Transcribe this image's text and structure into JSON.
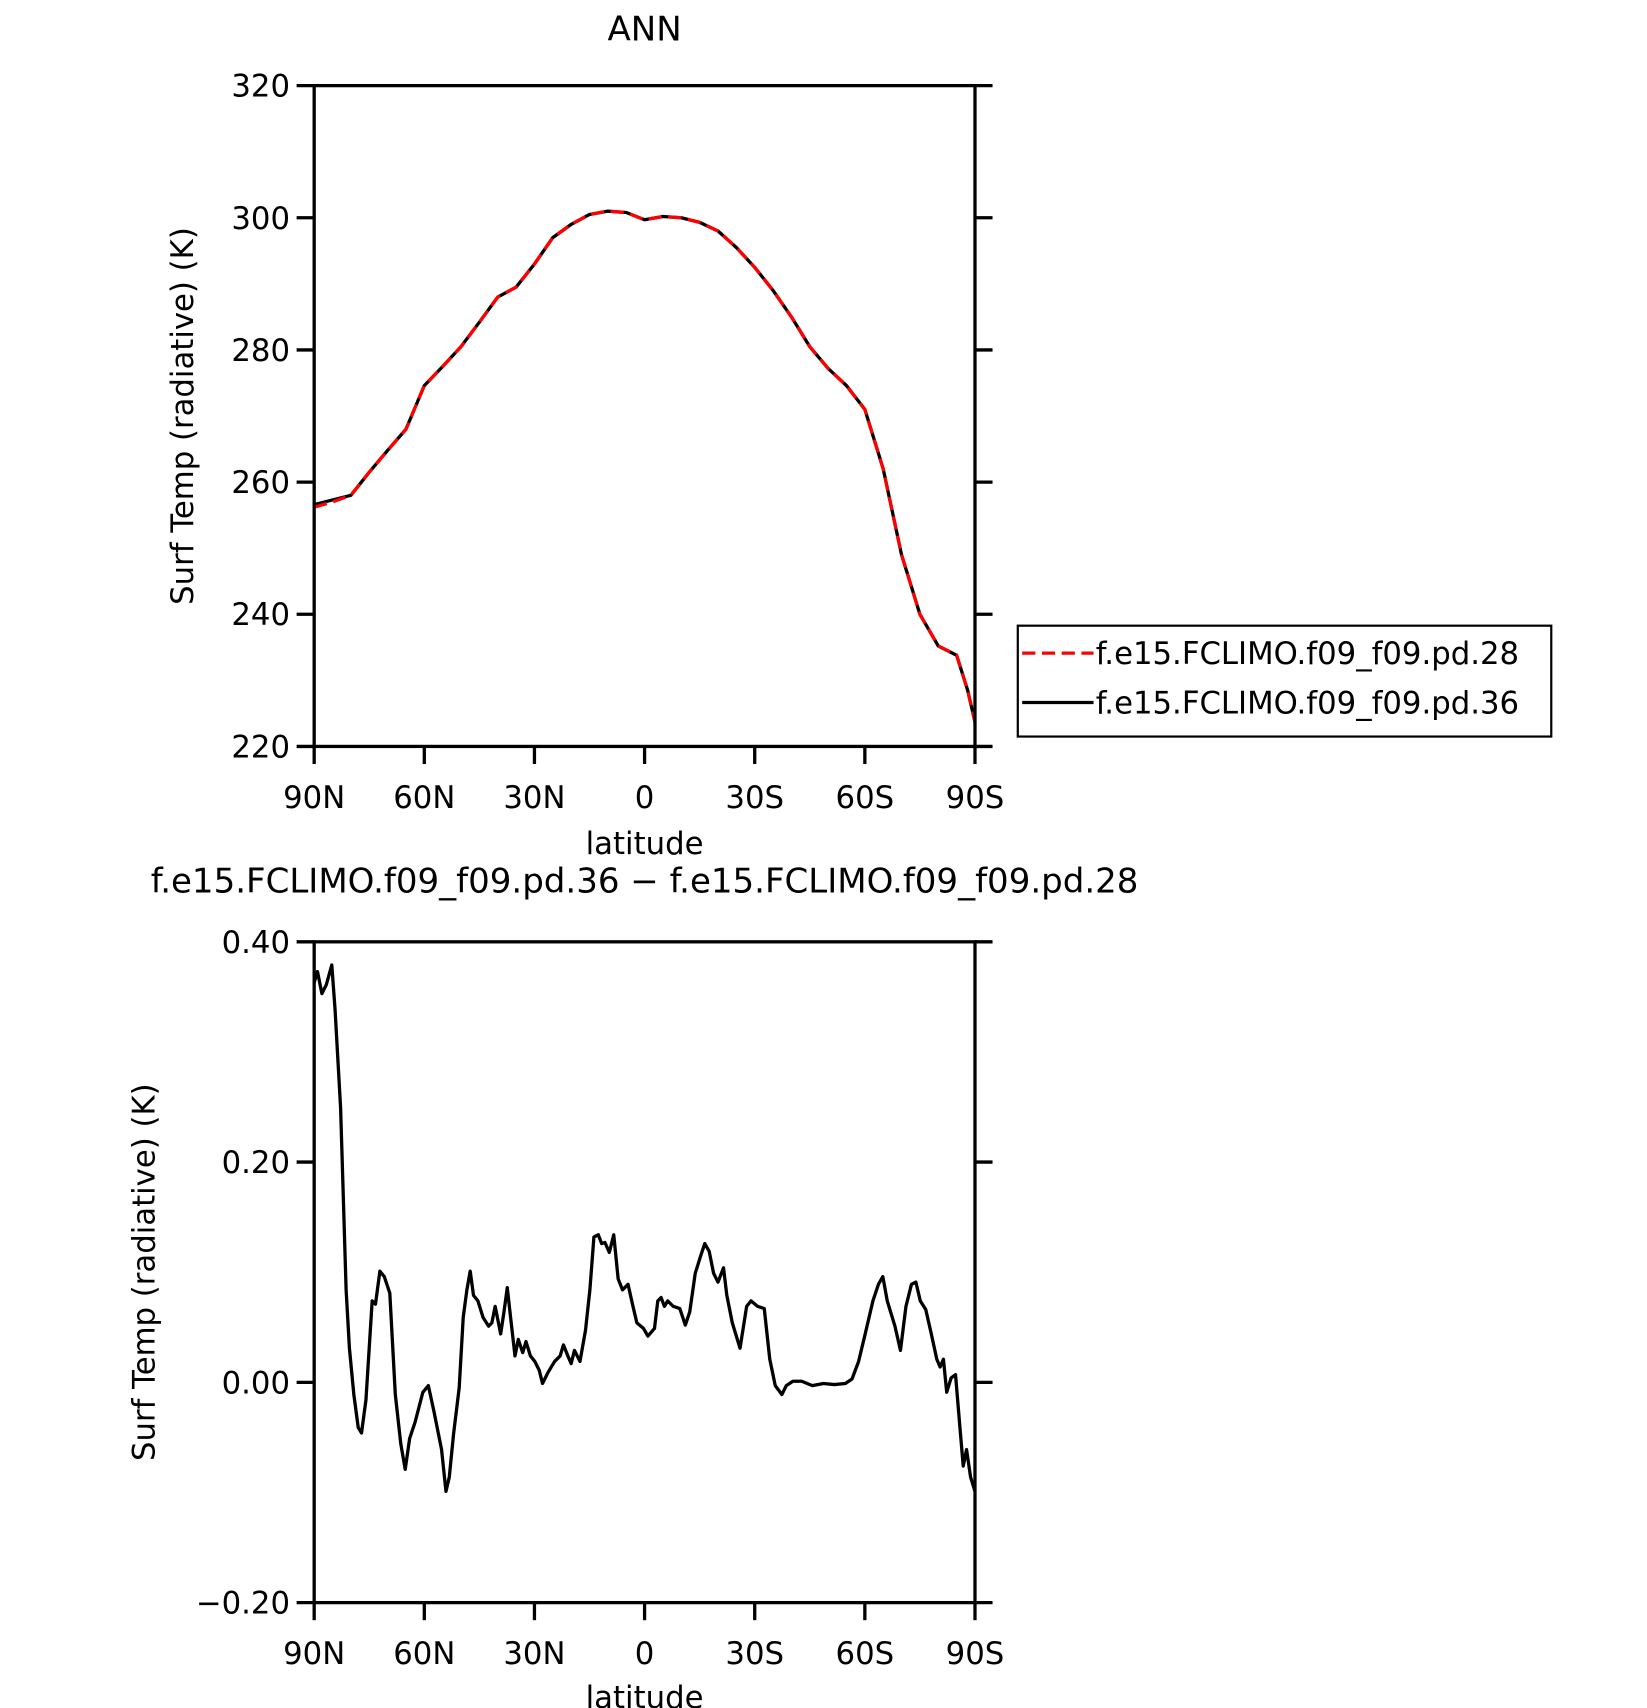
{
  "chart_data": [
    {
      "type": "line",
      "title": "ANN",
      "xlabel": "latitude",
      "ylabel": "Surf Temp (radiative) (K)",
      "x": [
        90,
        85,
        80,
        75,
        70,
        65,
        60,
        55,
        50,
        45,
        40,
        35,
        30,
        25,
        20,
        15,
        10,
        5,
        0,
        -5,
        -10,
        -15,
        -20,
        -25,
        -30,
        -35,
        -40,
        -45,
        -50,
        -55,
        -60,
        -65,
        -70,
        -75,
        -80,
        -85,
        -88,
        -90
      ],
      "series": [
        {
          "name": "f.e15.FCLIMO.f09_f09.pd.28",
          "color": "#ff0000",
          "dash": true,
          "values": [
            256.2,
            257,
            258,
            261.5,
            264.8,
            268,
            274.6,
            277.5,
            280.5,
            284.2,
            288,
            289.5,
            293,
            297,
            299,
            300.5,
            301,
            300.8,
            299.7,
            300.2,
            300,
            299.3,
            298,
            295.5,
            292.5,
            289,
            285,
            280.5,
            277.2,
            274.6,
            271,
            262,
            249,
            240,
            235.2,
            233.8,
            228.5,
            223.7
          ]
        },
        {
          "name": "f.e15.FCLIMO.f09_f09.pd.36",
          "color": "#000000",
          "dash": false,
          "values": [
            256.6,
            257.3,
            258,
            261.5,
            264.8,
            268,
            274.6,
            277.5,
            280.5,
            284.2,
            288,
            289.5,
            293,
            297,
            299,
            300.5,
            301,
            300.8,
            299.7,
            300.2,
            300,
            299.3,
            298,
            295.5,
            292.5,
            289,
            285,
            280.5,
            277.2,
            274.6,
            271,
            262,
            249,
            240,
            235.2,
            233.8,
            228.5,
            223.7
          ]
        }
      ],
      "xlim": [
        90,
        -90
      ],
      "xticks": [
        {
          "value": 90,
          "label": "90N"
        },
        {
          "value": 60,
          "label": "60N"
        },
        {
          "value": 30,
          "label": "30N"
        },
        0,
        {
          "value": -30,
          "label": "30S"
        },
        {
          "value": -60,
          "label": "60S"
        },
        {
          "value": -90,
          "label": "90S"
        }
      ],
      "ylim": [
        220,
        320
      ],
      "yticks": [
        220,
        240,
        260,
        280,
        300,
        320
      ],
      "legend": "right"
    },
    {
      "type": "line",
      "title": "f.e15.FCLIMO.f09_f09.pd.36 − f.e15.FCLIMO.f09_f09.pd.28",
      "xlabel": "latitude",
      "ylabel": "Surf Temp (radiative) (K)",
      "x": [
        90,
        89.1,
        87.9,
        86.7,
        85.2,
        84.3,
        82.8,
        81.3,
        80.4,
        79.2,
        78.0,
        77.1,
        75.9,
        74.2,
        73.3,
        72.1,
        70.9,
        69.4,
        67.9,
        66.4,
        65.2,
        64.0,
        62.5,
        60.4,
        58.9,
        57.4,
        55.3,
        54.1,
        53.2,
        52.0,
        50.5,
        49.4,
        48.4,
        47.5,
        46.6,
        45.4,
        44.0,
        42.5,
        41.6,
        40.7,
        39.2,
        38.3,
        37.4,
        36.5,
        35.3,
        34.4,
        33.2,
        32.3,
        31.1,
        29.9,
        28.7,
        27.8,
        26.3,
        24.5,
        23.0,
        22.1,
        20.9,
        20.0,
        19.1,
        17.6,
        16.1,
        14.9,
        13.8,
        12.6,
        11.7,
        10.8,
        9.6,
        8.4,
        7.2,
        6.0,
        4.5,
        3.3,
        2.1,
        0.3,
        -0.9,
        -2.7,
        -3.6,
        -4.5,
        -5.4,
        -6.3,
        -7.8,
        -9.6,
        -11.1,
        -12.3,
        -13.8,
        -15.2,
        -16.4,
        -17.6,
        -18.8,
        -20.0,
        -21.5,
        -22.4,
        -23.9,
        -26.0,
        -27.8,
        -29.0,
        -30.8,
        -32.6,
        -34.1,
        -35.6,
        -37.4,
        -38.6,
        -40.4,
        -42.8,
        -45.7,
        -48.7,
        -51.7,
        -54.7,
        -56.5,
        -58.3,
        -60.1,
        -62.2,
        -63.7,
        -64.9,
        -66.1,
        -68.2,
        -69.7,
        -71.2,
        -72.7,
        -73.9,
        -75.1,
        -76.6,
        -78.1,
        -79.6,
        -80.5,
        -81.4,
        -82.3,
        -83.5,
        -84.7,
        -85.9,
        -86.8,
        -87.7,
        -88.8,
        -90
      ],
      "series": [
        {
          "color": "#000000",
          "dash": false,
          "values": [
            0.363,
            0.373,
            0.353,
            0.361,
            0.379,
            0.338,
            0.249,
            0.084,
            0.031,
            -0.011,
            -0.041,
            -0.046,
            -0.016,
            0.074,
            0.071,
            0.101,
            0.096,
            0.081,
            -0.011,
            -0.056,
            -0.079,
            -0.051,
            -0.036,
            -0.009,
            -0.003,
            -0.026,
            -0.061,
            -0.099,
            -0.086,
            -0.046,
            -0.005,
            0.059,
            0.084,
            0.101,
            0.079,
            0.074,
            0.059,
            0.051,
            0.054,
            0.069,
            0.044,
            0.064,
            0.086,
            0.059,
            0.024,
            0.039,
            0.027,
            0.037,
            0.024,
            0.019,
            0.011,
            -0.001,
            0.009,
            0.019,
            0.024,
            0.034,
            0.024,
            0.017,
            0.029,
            0.019,
            0.047,
            0.084,
            0.132,
            0.134,
            0.126,
            0.127,
            0.118,
            0.134,
            0.094,
            0.084,
            0.089,
            0.071,
            0.054,
            0.049,
            0.042,
            0.049,
            0.074,
            0.077,
            0.069,
            0.074,
            0.069,
            0.067,
            0.052,
            0.064,
            0.099,
            0.114,
            0.126,
            0.119,
            0.099,
            0.091,
            0.104,
            0.079,
            0.054,
            0.031,
            0.069,
            0.074,
            0.069,
            0.067,
            0.021,
            -0.003,
            -0.011,
            -0.003,
            0.001,
            0.001,
            -0.003,
            -0.001,
            -0.002,
            -0.001,
            0.003,
            0.019,
            0.044,
            0.074,
            0.089,
            0.096,
            0.074,
            0.051,
            0.029,
            0.069,
            0.089,
            0.091,
            0.074,
            0.066,
            0.044,
            0.021,
            0.014,
            0.021,
            -0.009,
            0.004,
            0.007,
            -0.041,
            -0.076,
            -0.061,
            -0.086,
            -0.099
          ]
        }
      ],
      "xlim": [
        90,
        -90
      ],
      "xticks": [
        {
          "value": 90,
          "label": "90N"
        },
        {
          "value": 60,
          "label": "60N"
        },
        {
          "value": 30,
          "label": "30N"
        },
        0,
        {
          "value": -30,
          "label": "30S"
        },
        {
          "value": -60,
          "label": "60S"
        },
        {
          "value": -90,
          "label": "90S"
        }
      ],
      "ylim": [
        -0.2,
        0.4
      ],
      "yticks": [
        {
          "value": -0.2,
          "label": "−0.20"
        },
        {
          "value": 0,
          "label": "0.00"
        },
        {
          "value": 0.2,
          "label": "0.20"
        },
        {
          "value": 0.4,
          "label": "0.40"
        }
      ]
    }
  ]
}
